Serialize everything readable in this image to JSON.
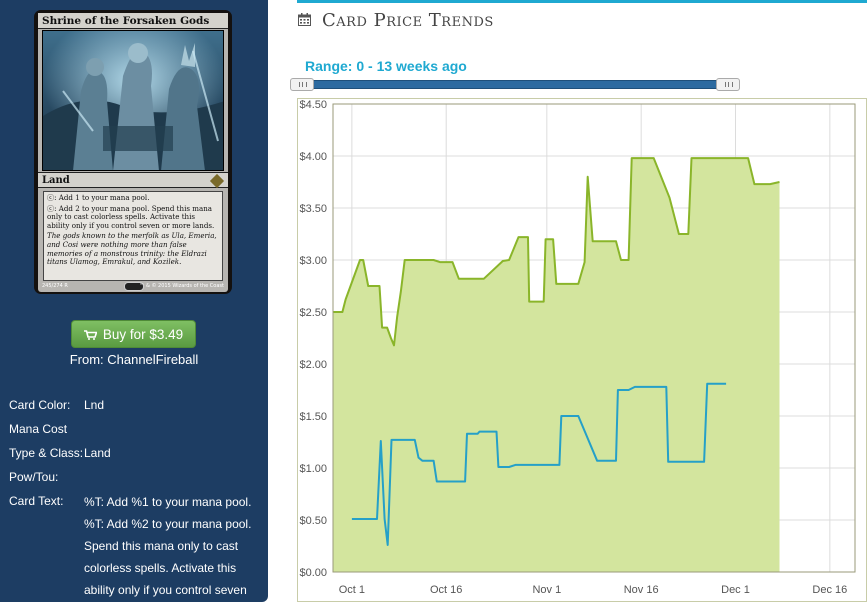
{
  "card": {
    "name": "Shrine of the Forsaken Gods",
    "type_line": "Land",
    "rules_1": "ⓒ: Add 1 to your mana pool.",
    "rules_2": "ⓒ: Add 2 to your mana pool. Spend this mana only to cast colorless spells. Activate this ability only if you control seven or more lands.",
    "flavor": "The gods known to the merfolk as Ula, Emeria, and Cosi were nothing more than false memories of a monstrous trinity: the Eldrazi titans Ulamog, Emrakul, and Kozilek.",
    "collector": "245/274 R",
    "copyright": "™ & © 2015 Wizards of the Coast"
  },
  "buy": {
    "label": "Buy for $3.49",
    "from": "From: ChannelFireball"
  },
  "details": {
    "color_label": "Card Color:",
    "color_value": "Lnd",
    "mana_label": "Mana Cost",
    "type_label": "Type & Class:",
    "type_value": "Land",
    "powtou_label": "Pow/Tou:",
    "text_label": "Card Text:",
    "text_lines": [
      "%T: Add %1 to your mana pool.",
      "%T: Add %2 to your mana pool.",
      "Spend this mana only to cast",
      "colorless spells. Activate this",
      "ability only if you control seven"
    ]
  },
  "page_title": "Card Price Trends",
  "range_label": "Range: 0 - 13 weeks ago",
  "range": {
    "from_weeks": 0,
    "to_weeks": 13
  },
  "colors": {
    "accent": "#1fa9d1",
    "sidebar": "#1d3d63",
    "buy_button": "#6aa84f",
    "paper_line": "#8ab52a",
    "paper_fill": "#d3e59e",
    "foil_line": "#25a0c8"
  },
  "icons": {
    "title": "calendar-icon",
    "buy": "cart-icon"
  },
  "chart_data": {
    "type": "line",
    "title": "",
    "xlabel": "",
    "ylabel": "",
    "ylim": [
      0,
      4.5
    ],
    "y_ticks": [
      "$0.00",
      "$0.50",
      "$1.00",
      "$1.50",
      "$2.00",
      "$2.50",
      "$3.00",
      "$3.50",
      "$4.00",
      "$4.50"
    ],
    "x_ticks": [
      "Oct 1",
      "Oct 16",
      "Nov 1",
      "Nov 16",
      "Dec 1",
      "Dec 16"
    ],
    "x_tick_days": [
      0,
      15,
      31,
      46,
      61,
      76
    ],
    "xlim": [
      -3,
      80
    ],
    "grid": true,
    "series": [
      {
        "name": "",
        "filled": true,
        "points": [
          [
            -3,
            2.5
          ],
          [
            -1.5,
            2.5
          ],
          [
            -1,
            2.62
          ],
          [
            1.3,
            3.0
          ],
          [
            1.8,
            3.0
          ],
          [
            2.6,
            2.75
          ],
          [
            3.5,
            2.75
          ],
          [
            4.4,
            2.75
          ],
          [
            4.8,
            2.35
          ],
          [
            5.6,
            2.35
          ],
          [
            6.2,
            2.25
          ],
          [
            6.7,
            2.18
          ],
          [
            7.2,
            2.45
          ],
          [
            7.8,
            2.7
          ],
          [
            8.4,
            3.0
          ],
          [
            11,
            3.0
          ],
          [
            13,
            3.0
          ],
          [
            14,
            2.98
          ],
          [
            16,
            2.98
          ],
          [
            17,
            2.82
          ],
          [
            20,
            2.82
          ],
          [
            21,
            2.82
          ],
          [
            24,
            2.99
          ],
          [
            25,
            3.0
          ],
          [
            26.5,
            3.22
          ],
          [
            28,
            3.22
          ],
          [
            28.2,
            2.6
          ],
          [
            30.5,
            2.6
          ],
          [
            30.8,
            3.2
          ],
          [
            32,
            3.2
          ],
          [
            32.5,
            2.77
          ],
          [
            36,
            2.77
          ],
          [
            37,
            2.98
          ],
          [
            37.5,
            3.8
          ],
          [
            38.3,
            3.18
          ],
          [
            41,
            3.18
          ],
          [
            42,
            3.18
          ],
          [
            42.8,
            3.0
          ],
          [
            44,
            3.0
          ],
          [
            44.5,
            3.98
          ],
          [
            47,
            3.98
          ],
          [
            48,
            3.98
          ],
          [
            50.5,
            3.6
          ],
          [
            52,
            3.25
          ],
          [
            53.5,
            3.25
          ],
          [
            54,
            3.98
          ],
          [
            62,
            3.98
          ],
          [
            63,
            3.98
          ],
          [
            64,
            3.73
          ],
          [
            66.5,
            3.73
          ],
          [
            68,
            3.75
          ]
        ]
      },
      {
        "name": "",
        "filled": false,
        "points": [
          [
            0,
            0.51
          ],
          [
            1,
            0.51
          ],
          [
            4,
            0.51
          ],
          [
            4.6,
            1.26
          ],
          [
            5.2,
            0.51
          ],
          [
            5.7,
            0.26
          ],
          [
            6.3,
            1.27
          ],
          [
            8,
            1.27
          ],
          [
            10,
            1.27
          ],
          [
            10.6,
            1.1
          ],
          [
            11.2,
            1.07
          ],
          [
            13,
            1.07
          ],
          [
            13.5,
            0.87
          ],
          [
            15,
            0.87
          ],
          [
            18,
            0.87
          ],
          [
            18.3,
            1.33
          ],
          [
            20,
            1.33
          ],
          [
            20.3,
            1.35
          ],
          [
            23,
            1.35
          ],
          [
            23.3,
            1.01
          ],
          [
            25,
            1.01
          ],
          [
            26,
            1.03
          ],
          [
            28,
            1.03
          ],
          [
            33,
            1.03
          ],
          [
            33.3,
            1.5
          ],
          [
            36,
            1.5
          ],
          [
            39,
            1.07
          ],
          [
            42,
            1.07
          ],
          [
            42.3,
            1.75
          ],
          [
            44,
            1.75
          ],
          [
            45,
            1.78
          ],
          [
            46,
            1.78
          ],
          [
            50,
            1.78
          ],
          [
            50.3,
            1.06
          ],
          [
            56,
            1.06
          ],
          [
            56.5,
            1.81
          ],
          [
            59.5,
            1.81
          ]
        ]
      }
    ]
  }
}
